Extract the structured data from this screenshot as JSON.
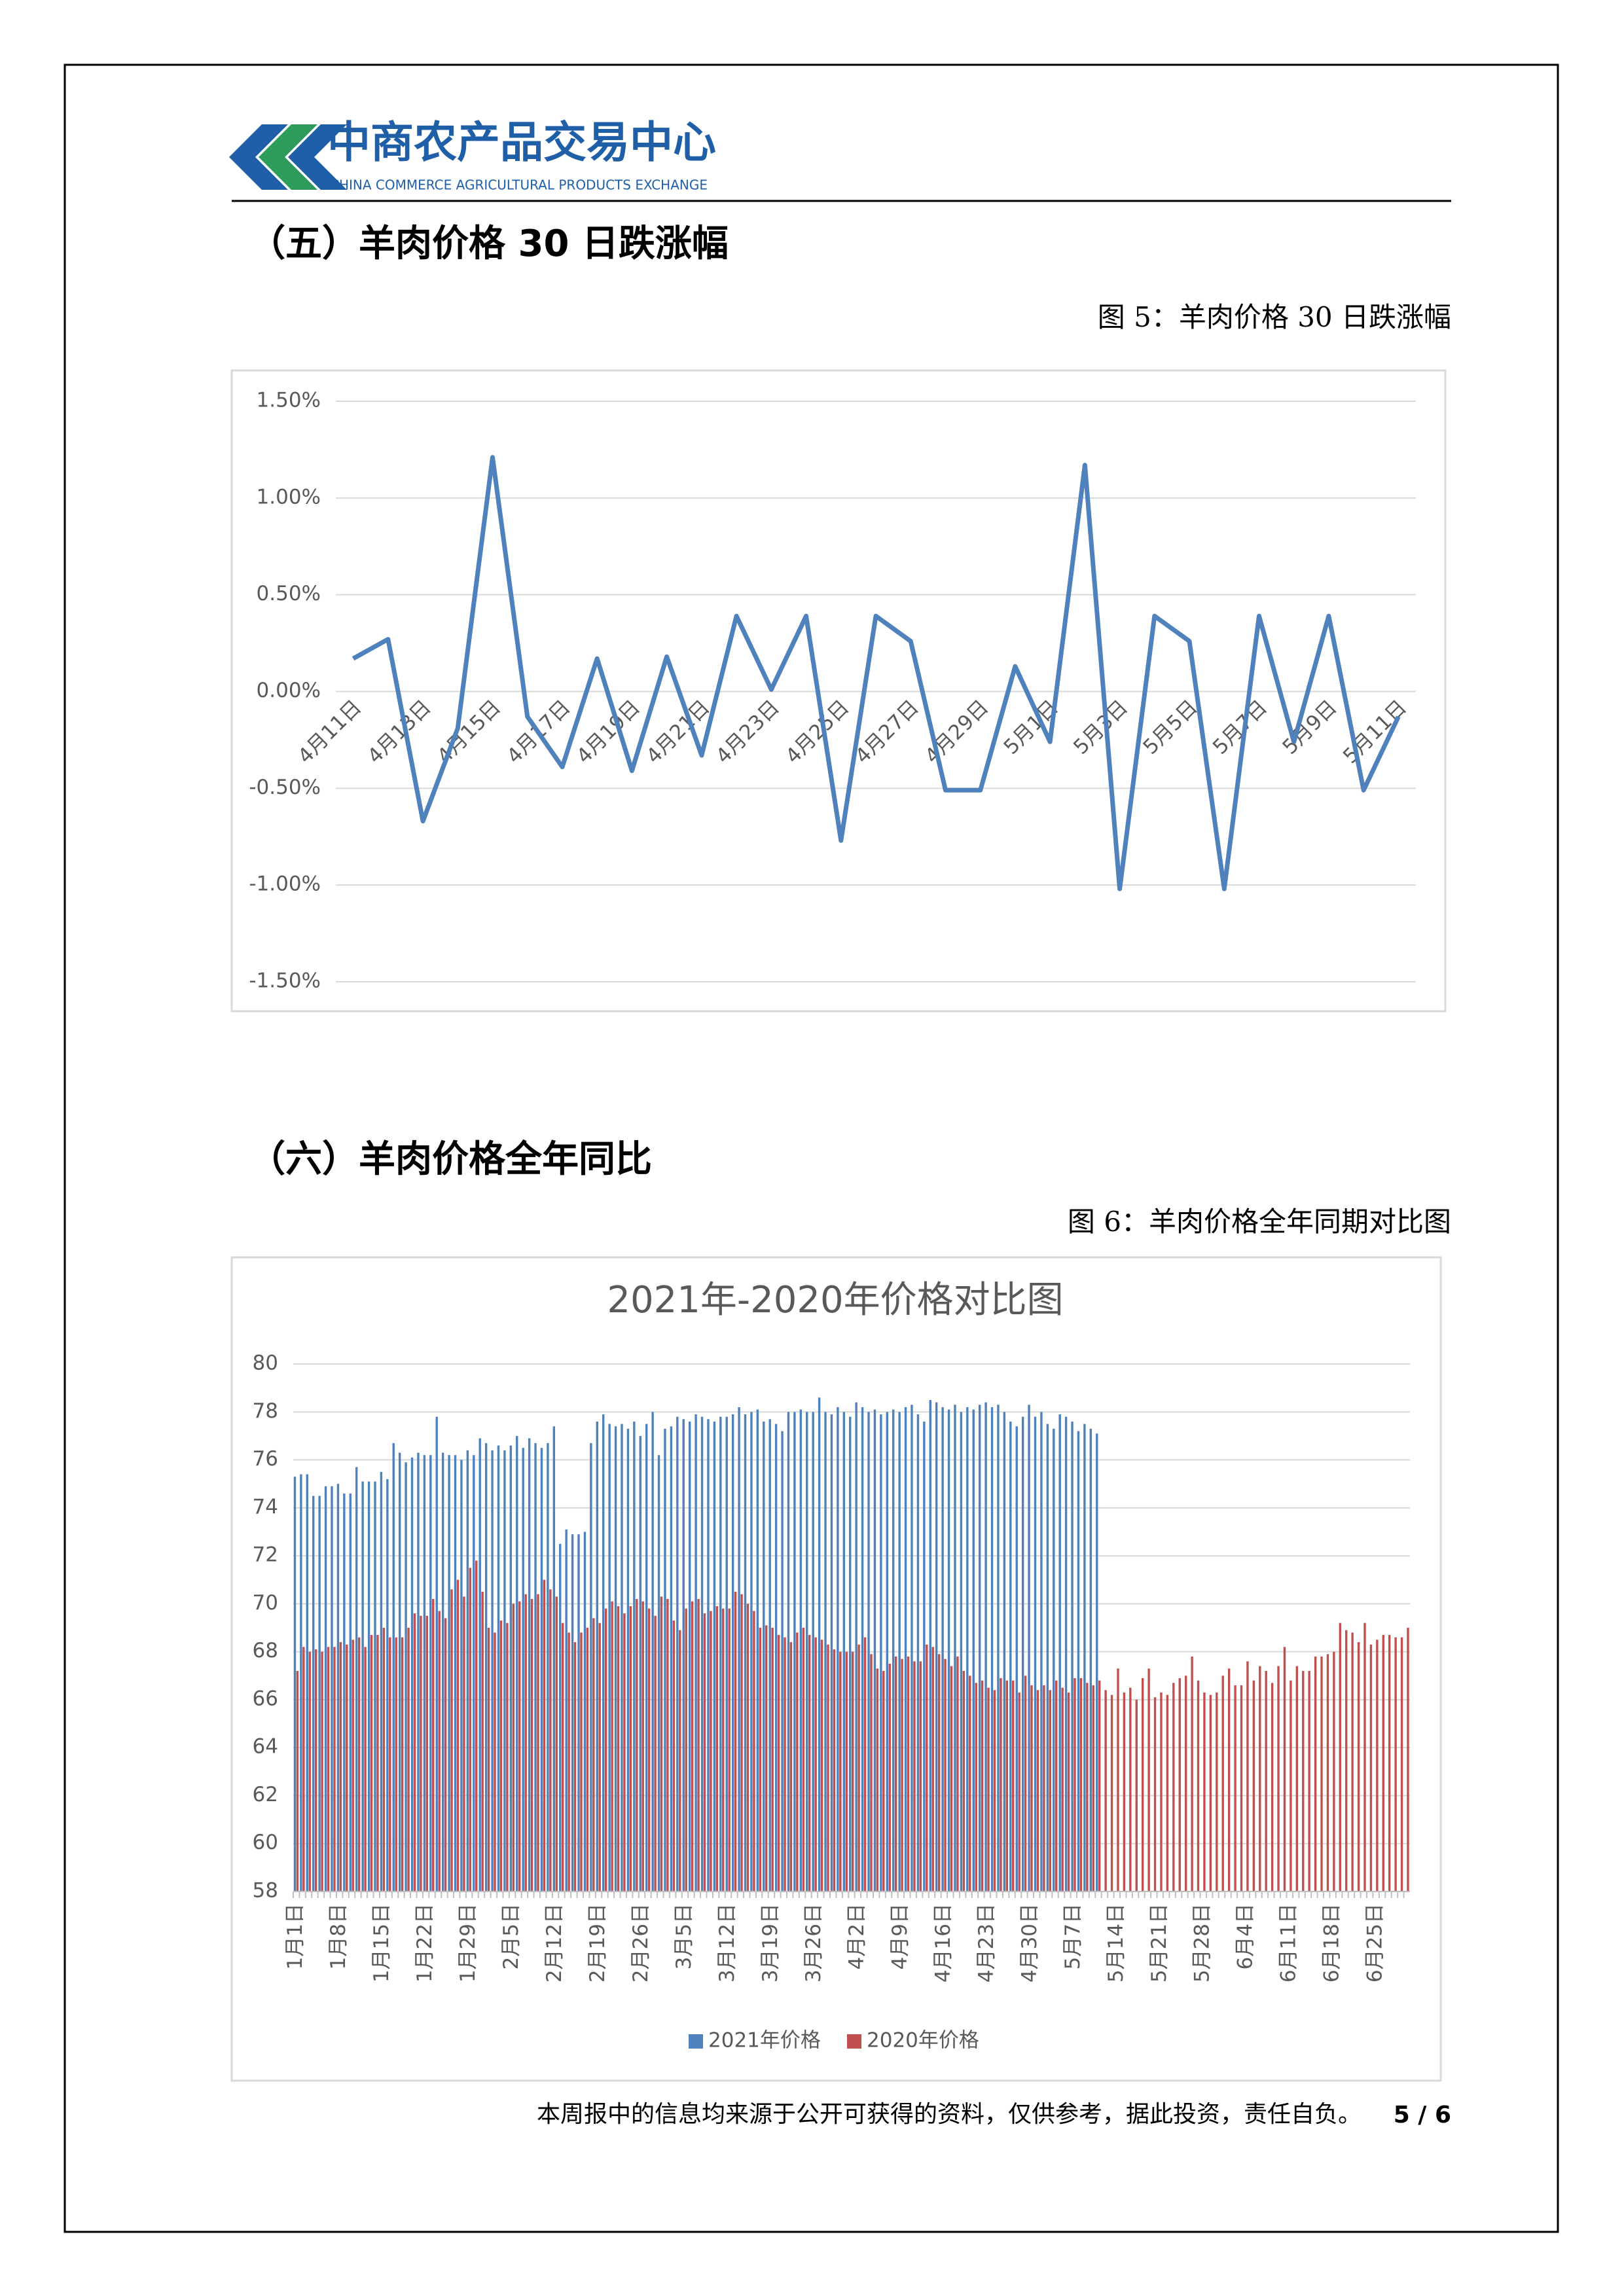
{
  "header": {
    "logo_text": "中商农产品交易中心",
    "logo_subtitle": "CHINA COMMERCE AGRICULTURAL PRODUCTS EXCHANGE"
  },
  "sections": [
    {
      "heading": "（五）羊肉价格 30 日跌涨幅",
      "caption": "图 5：羊肉价格 30 日跌涨幅"
    },
    {
      "heading": "（六）羊肉价格全年同比",
      "caption": "图 6：羊肉价格全年同期对比图"
    }
  ],
  "chart_data": [
    {
      "type": "line",
      "categories": [
        "4月11日",
        null,
        "4月13日",
        null,
        "4月15日",
        null,
        "4月17日",
        null,
        "4月19日",
        null,
        "4月21日",
        null,
        "4月23日",
        null,
        "4月25日",
        null,
        "4月27日",
        null,
        "4月29日",
        null,
        "5月1日",
        null,
        "5月3日",
        null,
        "5月5日",
        null,
        "5月7日",
        null,
        "5月9日",
        null,
        "5月11日"
      ],
      "values": [
        0.17,
        0.27,
        -0.67,
        -0.19,
        1.21,
        -0.13,
        -0.39,
        0.17,
        -0.41,
        0.18,
        -0.33,
        0.39,
        0.01,
        0.39,
        -0.77,
        0.39,
        0.26,
        -0.51,
        -0.51,
        0.13,
        -0.26,
        1.17,
        -1.02,
        0.39,
        0.26,
        -1.02,
        0.39,
        -0.26,
        0.39,
        -0.51,
        -0.13
      ],
      "color": "#4f81bd",
      "ylim": [
        -1.5,
        1.5
      ],
      "yticks": [
        {
          "value": -1.5,
          "label": "-1.50%"
        },
        {
          "value": -1,
          "label": "-1.00%"
        },
        {
          "value": -0.5,
          "label": "-0.50%"
        },
        {
          "value": 0,
          "label": "0.00%"
        },
        {
          "value": 0.5,
          "label": "0.50%"
        },
        {
          "value": 1,
          "label": "1.00%"
        },
        {
          "value": 1.5,
          "label": "1.50%"
        }
      ],
      "grid": true
    },
    {
      "type": "bar",
      "title": "2021年-2020年价格对比图",
      "categories": [
        "1月1日",
        null,
        null,
        null,
        null,
        null,
        null,
        "1月8日",
        null,
        null,
        null,
        null,
        null,
        null,
        "1月15日",
        null,
        null,
        null,
        null,
        null,
        null,
        "1月22日",
        null,
        null,
        null,
        null,
        null,
        null,
        "1月29日",
        null,
        null,
        null,
        null,
        null,
        null,
        "2月5日",
        null,
        null,
        null,
        null,
        null,
        null,
        "2月12日",
        null,
        null,
        null,
        null,
        null,
        null,
        "2月19日",
        null,
        null,
        null,
        null,
        null,
        null,
        "2月26日",
        null,
        null,
        null,
        null,
        null,
        null,
        "3月5日",
        null,
        null,
        null,
        null,
        null,
        null,
        "3月12日",
        null,
        null,
        null,
        null,
        null,
        null,
        "3月19日",
        null,
        null,
        null,
        null,
        null,
        null,
        "3月26日",
        null,
        null,
        null,
        null,
        null,
        null,
        "4月2日",
        null,
        null,
        null,
        null,
        null,
        null,
        "4月9日",
        null,
        null,
        null,
        null,
        null,
        null,
        "4月16日",
        null,
        null,
        null,
        null,
        null,
        null,
        "4月23日",
        null,
        null,
        null,
        null,
        null,
        null,
        "4月30日",
        null,
        null,
        null,
        null,
        null,
        null,
        "5月7日",
        null,
        null,
        null,
        null,
        null,
        null,
        "5月14日",
        null,
        null,
        null,
        null,
        null,
        null,
        "5月21日",
        null,
        null,
        null,
        null,
        null,
        null,
        "5月28日",
        null,
        null,
        null,
        null,
        null,
        null,
        "6月4日",
        null,
        null,
        null,
        null,
        null,
        null,
        "6月11日",
        null,
        null,
        null,
        null,
        null,
        null,
        "6月18日",
        null,
        null,
        null,
        null,
        null,
        null,
        "6月25日",
        null,
        null,
        null,
        null,
        null
      ],
      "series": [
        {
          "name": "2021年价格",
          "color": "#4f81bd",
          "values": [
            75.3,
            75.4,
            75.4,
            74.5,
            74.5,
            74.9,
            74.9,
            75.0,
            74.6,
            74.6,
            75.7,
            75.1,
            75.1,
            75.1,
            75.5,
            75.2,
            76.7,
            76.3,
            75.9,
            76.1,
            76.3,
            76.2,
            76.2,
            77.8,
            76.3,
            76.2,
            76.2,
            76.0,
            76.4,
            76.2,
            76.9,
            76.7,
            76.4,
            76.6,
            76.4,
            76.6,
            77.0,
            76.5,
            76.9,
            76.7,
            76.5,
            76.7,
            77.4,
            72.5,
            73.1,
            72.9,
            72.9,
            73.0,
            76.7,
            77.6,
            77.9,
            77.5,
            77.4,
            77.5,
            77.3,
            77.6,
            77.0,
            77.5,
            78.0,
            76.2,
            77.3,
            77.4,
            77.8,
            77.7,
            77.6,
            77.9,
            77.8,
            77.7,
            77.6,
            77.8,
            77.8,
            77.9,
            78.2,
            77.9,
            78.0,
            78.1,
            77.6,
            77.7,
            77.5,
            77.2,
            78.0,
            78.0,
            78.1,
            78.0,
            78.0,
            78.6,
            78.0,
            77.9,
            78.2,
            78.0,
            77.8,
            78.4,
            78.2,
            78.0,
            78.1,
            77.9,
            78.0,
            78.1,
            78.0,
            78.2,
            78.3,
            77.9,
            77.6,
            78.5,
            78.4,
            78.2,
            78.1,
            78.3,
            78.0,
            78.2,
            78.1,
            78.3,
            78.4,
            78.2,
            78.3,
            78.0,
            77.6,
            77.4,
            77.8,
            78.3,
            77.8,
            78.0,
            77.5,
            77.3,
            77.9,
            77.8,
            77.6,
            77.2,
            77.5,
            77.3,
            77.1,
            null,
            null,
            null,
            null,
            null,
            null,
            null,
            null,
            null,
            null,
            null,
            null,
            null,
            null,
            null,
            null,
            null,
            null,
            null,
            null,
            null,
            null,
            null,
            null,
            null,
            null,
            null,
            null,
            null,
            null,
            null,
            null,
            null,
            null,
            null,
            null,
            null,
            null,
            null,
            null,
            null,
            null,
            null,
            null,
            null,
            null,
            null,
            null,
            null,
            null
          ]
        },
        {
          "name": "2020年价格",
          "color": "#c0504d",
          "values": [
            67.2,
            68.2,
            68.0,
            68.1,
            68.0,
            68.2,
            68.2,
            68.4,
            68.3,
            68.5,
            68.6,
            68.2,
            68.7,
            68.7,
            69.0,
            68.6,
            68.6,
            68.6,
            69.0,
            69.6,
            69.5,
            69.5,
            70.2,
            69.7,
            69.4,
            70.6,
            71.0,
            70.3,
            71.5,
            71.8,
            70.5,
            69.0,
            68.8,
            69.3,
            69.2,
            70.0,
            70.1,
            70.4,
            70.2,
            70.4,
            71.0,
            70.6,
            70.3,
            69.2,
            68.8,
            68.4,
            68.8,
            69.0,
            69.4,
            69.2,
            69.8,
            70.1,
            69.9,
            69.6,
            69.9,
            70.2,
            70.1,
            69.8,
            69.5,
            70.3,
            70.2,
            69.3,
            68.9,
            69.8,
            70.1,
            70.2,
            69.6,
            69.7,
            69.9,
            69.8,
            69.8,
            70.5,
            70.4,
            70.0,
            69.7,
            69.0,
            69.1,
            69.0,
            68.7,
            68.6,
            68.4,
            68.8,
            69.0,
            68.7,
            68.6,
            68.5,
            68.3,
            68.1,
            68.0,
            68.0,
            68.0,
            68.3,
            68.6,
            67.9,
            67.3,
            67.2,
            67.5,
            67.8,
            67.7,
            67.8,
            67.6,
            67.6,
            68.3,
            68.2,
            67.9,
            67.7,
            67.4,
            67.8,
            67.2,
            67.0,
            66.7,
            66.8,
            66.5,
            66.4,
            66.9,
            66.8,
            66.8,
            66.3,
            67.0,
            66.6,
            66.4,
            66.6,
            66.4,
            66.8,
            66.5,
            66.3,
            66.9,
            66.9,
            66.7,
            66.6,
            66.8,
            66.4,
            66.2,
            67.3,
            66.3,
            66.5,
            66.0,
            66.9,
            67.3,
            66.1,
            66.3,
            66.2,
            66.7,
            66.9,
            67.0,
            67.8,
            66.8,
            66.3,
            66.2,
            66.3,
            67.0,
            67.3,
            66.6,
            66.6,
            67.6,
            66.8,
            67.4,
            67.2,
            66.7,
            67.4,
            68.2,
            66.8,
            67.4,
            67.2,
            67.2,
            67.8,
            67.8,
            67.9,
            68.0,
            69.2,
            68.9,
            68.8,
            68.4,
            69.2,
            68.3,
            68.5,
            68.7,
            68.7,
            68.6,
            68.6,
            69.0
          ]
        }
      ],
      "ylim": [
        58,
        80
      ],
      "yticks": [
        58,
        60,
        62,
        64,
        66,
        68,
        70,
        72,
        74,
        76,
        78,
        80
      ],
      "grid": true,
      "legend": "bottom"
    }
  ],
  "footer": {
    "disclaimer": "本周报中的信息均来源于公开可获得的资料，仅供参考，据此投资，责任自负。",
    "page": "5 / 6"
  }
}
